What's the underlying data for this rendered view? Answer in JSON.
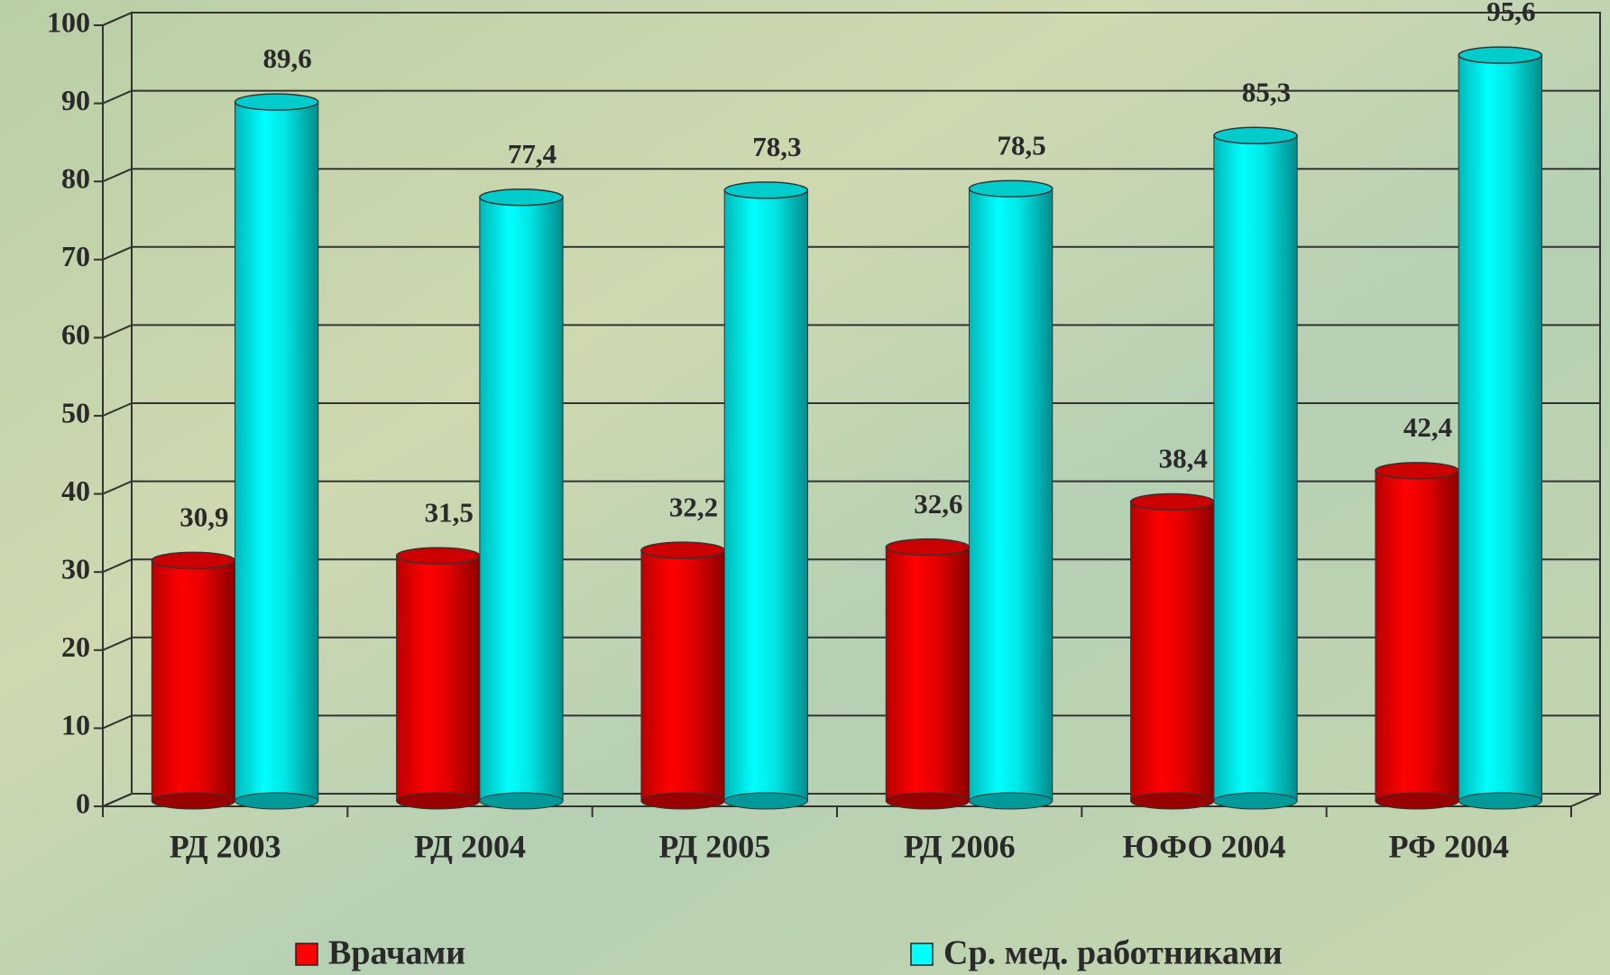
{
  "chart_data": {
    "type": "bar",
    "categories": [
      "РД 2003",
      "РД 2004",
      "РД 2005",
      "РД 2006",
      "ЮФО 2004",
      "РФ 2004"
    ],
    "series": [
      {
        "name": "Врачами",
        "color": "#ff0000",
        "values": [
          30.9,
          31.5,
          32.2,
          32.6,
          38.4,
          42.4
        ],
        "value_labels": [
          "30,9",
          "31,5",
          "32,2",
          "32,6",
          "38,4",
          "42,4"
        ]
      },
      {
        "name": "Ср. мед. работниками",
        "color": "#00ffff",
        "values": [
          89.6,
          77.4,
          78.3,
          78.5,
          85.3,
          95.6
        ],
        "value_labels": [
          "89,6",
          "77,4",
          "78,3",
          "78,5",
          "85,3",
          "95,6"
        ]
      }
    ],
    "ylim": [
      0,
      100
    ],
    "yticks": [
      0,
      10,
      20,
      30,
      40,
      50,
      60,
      70,
      80,
      90,
      100
    ],
    "grid": true,
    "legend": "bottom"
  }
}
